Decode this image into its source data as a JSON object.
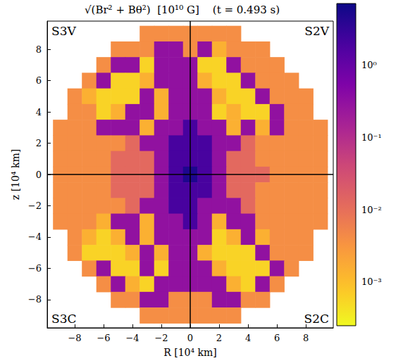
{
  "chart_data": {
    "type": "heatmap",
    "title": "√(Br² + Bθ²)  [10¹⁰ G]    (t = 0.493 s)",
    "x_label": "R [10⁴ km]",
    "y_label": "z [10⁴ km]",
    "annotations": [
      "S3V",
      "S2V",
      "S3C",
      "S2C"
    ],
    "xlim": [
      -9.9,
      9.9
    ],
    "ylim": [
      -9.8,
      9.8
    ],
    "xticks": [
      {
        "value": -8,
        "label": "−8"
      },
      {
        "value": -6,
        "label": "−6"
      },
      {
        "value": -4,
        "label": "−4"
      },
      {
        "value": -2,
        "label": "−2"
      },
      0,
      2,
      4,
      6,
      8
    ],
    "yticks": [
      {
        "value": -8,
        "label": "−8"
      },
      {
        "value": -6,
        "label": "−6"
      },
      {
        "value": -4,
        "label": "−4"
      },
      {
        "value": -2,
        "label": "−2"
      },
      0,
      2,
      4,
      6,
      8
    ],
    "grid": false,
    "cells": {
      "x": [
        -9,
        -8,
        -7,
        -6,
        -5,
        -4,
        -3,
        -2,
        -1,
        0,
        1,
        2,
        3,
        4,
        5,
        6,
        7,
        8,
        9
      ],
      "y": [
        9,
        8,
        7,
        6,
        5,
        4,
        3,
        2,
        1,
        0,
        -1,
        -2,
        -3,
        -4,
        -5,
        -6,
        -7,
        -8,
        -9
      ],
      "values": [
        [
          null,
          null,
          null,
          null,
          null,
          null,
          0.004,
          0.004,
          0.004,
          0.004,
          0.004,
          0.004,
          0.004,
          null,
          null,
          null,
          null,
          null,
          null
        ],
        [
          null,
          null,
          null,
          null,
          0.004,
          0.004,
          0.004,
          0.3,
          0.3,
          0.004,
          0.3,
          0.0015,
          0.004,
          0.004,
          0.004,
          null,
          null,
          null,
          null
        ],
        [
          null,
          null,
          null,
          0.004,
          0.3,
          0.3,
          0.0006,
          0.3,
          0.3,
          0.3,
          0.0006,
          0.0006,
          0.3,
          0.004,
          0.004,
          0.004,
          null,
          null,
          null
        ],
        [
          null,
          null,
          0.004,
          0.3,
          0.0006,
          0.0006,
          0.0015,
          0.3,
          0.3,
          0.3,
          0.0015,
          0.0006,
          0.0006,
          0.3,
          0.004,
          0.004,
          0.004,
          null,
          null
        ],
        [
          null,
          0.004,
          0.0015,
          0.0006,
          0.0006,
          0.0006,
          0.3,
          0.0015,
          0.3,
          0.3,
          0.3,
          0.0015,
          0.0006,
          0.0006,
          0.3,
          0.004,
          0.004,
          0.004,
          null
        ],
        [
          null,
          0.004,
          0.004,
          0.0006,
          0.0015,
          0.3,
          0.3,
          0.0015,
          0.3,
          0.3,
          0.3,
          0.0006,
          0.0015,
          0.0006,
          0.0006,
          0.3,
          0.004,
          0.004,
          null
        ],
        [
          0.004,
          0.004,
          0.004,
          0.3,
          0.3,
          0.3,
          0.0015,
          0.3,
          0.3,
          2,
          0.3,
          0.3,
          0.0015,
          0.3,
          0.0015,
          0.3,
          0.004,
          0.004,
          0.004
        ],
        [
          0.004,
          0.004,
          0.004,
          0.004,
          0.004,
          0.012,
          0.3,
          0.3,
          2,
          2,
          2,
          0.3,
          0.3,
          0.012,
          0.004,
          0.004,
          0.004,
          0.004,
          0.004
        ],
        [
          0.004,
          0.004,
          0.004,
          0.004,
          0.012,
          0.012,
          0.012,
          0.3,
          2,
          2,
          2,
          0.3,
          0.012,
          0.012,
          0.004,
          0.004,
          0.004,
          0.004,
          0.004
        ],
        [
          0.004,
          0.004,
          0.004,
          0.004,
          0.012,
          0.012,
          0.012,
          0.3,
          2,
          5,
          2,
          0.3,
          0.012,
          0.012,
          0.012,
          0.004,
          0.004,
          0.004,
          0.004
        ],
        [
          0.004,
          0.004,
          0.004,
          0.004,
          0.012,
          0.012,
          0.012,
          0.3,
          2,
          2,
          2,
          0.3,
          0.012,
          0.012,
          0.004,
          0.004,
          0.004,
          0.004,
          0.004
        ],
        [
          0.004,
          0.004,
          0.004,
          0.004,
          0.004,
          0.012,
          0.3,
          0.3,
          2,
          2,
          0.3,
          0.3,
          0.3,
          0.012,
          0.004,
          0.004,
          0.004,
          0.004,
          0.004
        ],
        [
          0.004,
          0.004,
          0.004,
          0.0015,
          0.3,
          0.3,
          0.0015,
          0.3,
          0.3,
          2,
          0.3,
          0.0015,
          0.3,
          0.3,
          0.004,
          0.004,
          0.004,
          0.004,
          0.004
        ],
        [
          null,
          0.004,
          0.0015,
          0.0006,
          0.0015,
          0.3,
          0.0015,
          0.3,
          0.3,
          0.3,
          0.3,
          0.0006,
          0.0015,
          0.3,
          0.0015,
          0.004,
          0.004,
          0.004,
          null
        ],
        [
          null,
          0.004,
          0.0006,
          0.0006,
          0.0006,
          0.0015,
          0.3,
          0.0015,
          0.3,
          0.3,
          0.0015,
          0.0006,
          0.0006,
          0.0006,
          0.3,
          0.004,
          0.004,
          0.004,
          null
        ],
        [
          null,
          null,
          0.004,
          0.3,
          0.0006,
          0.0006,
          0.3,
          0.0006,
          0.3,
          0.3,
          0.3,
          0.0015,
          0.0006,
          0.0006,
          0.0006,
          0.3,
          0.004,
          null,
          null
        ],
        [
          null,
          null,
          null,
          0.004,
          0.3,
          0.0015,
          0.0006,
          0.3,
          0.3,
          0.3,
          0.3,
          0.3,
          0.0015,
          0.0006,
          0.3,
          0.004,
          null,
          null,
          null
        ],
        [
          null,
          null,
          null,
          null,
          0.004,
          0.004,
          0.3,
          0.3,
          0.004,
          0.004,
          0.004,
          0.3,
          0.3,
          0.004,
          0.004,
          null,
          null,
          null,
          null
        ],
        [
          null,
          null,
          null,
          null,
          null,
          null,
          0.004,
          0.004,
          0.004,
          0.004,
          0.004,
          0.004,
          0.004,
          null,
          null,
          null,
          null,
          null,
          null
        ]
      ]
    },
    "colorbar": {
      "range": [
        0.00025,
        7
      ],
      "log": true,
      "ticks": [
        {
          "value": 1,
          "label": "10⁰"
        },
        {
          "value": 0.1,
          "label": "10⁻¹"
        },
        {
          "value": 0.01,
          "label": "10⁻²"
        },
        {
          "value": 0.001,
          "label": "10⁻³"
        }
      ]
    }
  }
}
